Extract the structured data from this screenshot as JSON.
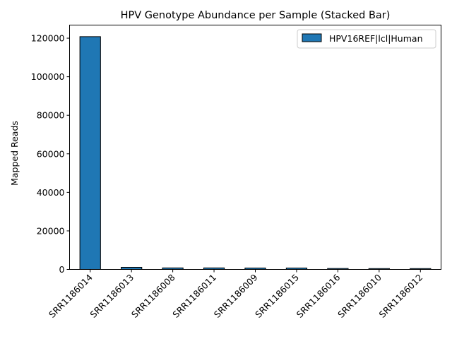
{
  "chart_data": {
    "type": "bar",
    "stacked": true,
    "title": "HPV Genotype Abundance per Sample (Stacked Bar)",
    "xlabel": "",
    "ylabel": "Mapped Reads",
    "ylim": [
      0,
      126800
    ],
    "yticks": [
      0,
      20000,
      40000,
      60000,
      80000,
      100000,
      120000
    ],
    "categories": [
      "SRR1186014",
      "SRR1186013",
      "SRR1186008",
      "SRR1186011",
      "SRR1186009",
      "SRR1186015",
      "SRR1186016",
      "SRR1186010",
      "SRR1186012"
    ],
    "series": [
      {
        "name": "HPV16REF|lcl|Human",
        "color": "#1f77b4",
        "values": [
          120800,
          1100,
          800,
          800,
          750,
          750,
          500,
          450,
          450
        ]
      }
    ],
    "legend": "top-right",
    "grid": false
  }
}
